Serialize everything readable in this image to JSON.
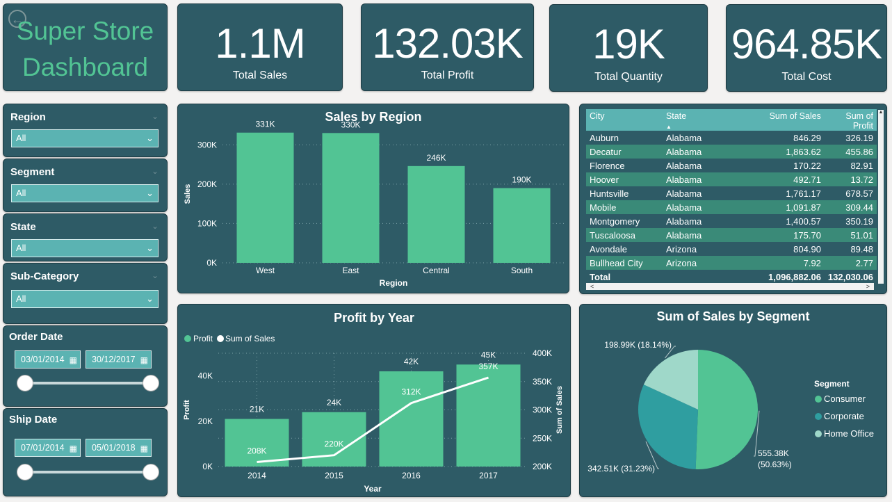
{
  "title": {
    "line1": "Super Store",
    "line2": "Dashboard"
  },
  "kpis": [
    {
      "value": "1.1M",
      "label": "Total Sales"
    },
    {
      "value": "132.03K",
      "label": "Total Profit"
    },
    {
      "value": "19K",
      "label": "Total Quantity"
    },
    {
      "value": "964.85K",
      "label": "Total Cost"
    }
  ],
  "slicers": {
    "region": {
      "label": "Region",
      "value": "All"
    },
    "segment": {
      "label": "Segment",
      "value": "All"
    },
    "state": {
      "label": "State",
      "value": "All"
    },
    "subcategory": {
      "label": "Sub-Category",
      "value": "All"
    },
    "order_date": {
      "label": "Order Date",
      "from": "03/01/2014",
      "to": "30/12/2017"
    },
    "ship_date": {
      "label": "Ship Date",
      "from": "07/01/2014",
      "to": "05/01/2018"
    }
  },
  "colors": {
    "card": "#2e5b66",
    "accent": "#52c494",
    "teal": "#5bb3b2",
    "row_alt": "#3a8a78"
  },
  "chart_data": [
    {
      "type": "bar",
      "title": "Sales by Region",
      "xlabel": "Region",
      "ylabel": "Sales",
      "categories": [
        "West",
        "East",
        "Central",
        "South"
      ],
      "values": [
        331000,
        330000,
        246000,
        190000
      ],
      "data_labels": [
        "331K",
        "330K",
        "246K",
        "190K"
      ],
      "yticks": [
        "0K",
        "100K",
        "200K",
        "300K"
      ],
      "ylim": [
        0,
        350000
      ],
      "grid": true
    },
    {
      "type": "bar",
      "title": "Profit by Year",
      "xlabel": "Year",
      "ylabel": "Profit",
      "y2label": "Sum of Sales",
      "categories": [
        "2014",
        "2015",
        "2016",
        "2017"
      ],
      "legend": [
        "Profit",
        "Sum of Sales"
      ],
      "series": [
        {
          "name": "Profit",
          "kind": "bar",
          "values": [
            21000,
            24000,
            42000,
            45000
          ],
          "labels": [
            "21K",
            "24K",
            "42K",
            "45K"
          ]
        },
        {
          "name": "Sum of Sales",
          "kind": "line",
          "values": [
            208000,
            220000,
            312000,
            357000
          ],
          "labels": [
            "208K",
            "220K",
            "312K",
            "357K"
          ]
        }
      ],
      "yticks": [
        "0K",
        "20K",
        "40K"
      ],
      "ylim": [
        0,
        50000
      ],
      "y2ticks": [
        "200K",
        "250K",
        "300K",
        "350K",
        "400K"
      ],
      "y2lim": [
        200000,
        400000
      ],
      "grid": true
    },
    {
      "type": "pie",
      "title": "Sum of Sales by Segment",
      "legend_title": "Segment",
      "categories": [
        "Consumer",
        "Corporate",
        "Home Office"
      ],
      "values": [
        555380,
        342510,
        198990
      ],
      "labels": [
        [
          "555.38K",
          "(50.63%)"
        ],
        [
          "342.51K (31.23%)"
        ],
        [
          "198.99K (18.14%)"
        ]
      ],
      "colors": [
        "#52c494",
        "#2f9ea0",
        "#9fd8c9"
      ]
    }
  ],
  "table": {
    "headers": [
      "City",
      "State",
      "Sum of Sales",
      "Sum of Profit"
    ],
    "rows": [
      [
        "Auburn",
        "Alabama",
        "846.29",
        "326.19"
      ],
      [
        "Decatur",
        "Alabama",
        "1,863.62",
        "455.86"
      ],
      [
        "Florence",
        "Alabama",
        "170.22",
        "82.91"
      ],
      [
        "Hoover",
        "Alabama",
        "492.71",
        "13.72"
      ],
      [
        "Huntsville",
        "Alabama",
        "1,761.17",
        "678.57"
      ],
      [
        "Mobile",
        "Alabama",
        "1,091.87",
        "309.44"
      ],
      [
        "Montgomery",
        "Alabama",
        "1,400.57",
        "350.19"
      ],
      [
        "Tuscaloosa",
        "Alabama",
        "175.70",
        "51.01"
      ],
      [
        "Avondale",
        "Arizona",
        "804.90",
        "89.48"
      ],
      [
        "Bullhead City",
        "Arizona",
        "7.92",
        "2.77"
      ]
    ],
    "total": [
      "Total",
      "",
      "1,096,882.06",
      "132,030.06"
    ]
  }
}
